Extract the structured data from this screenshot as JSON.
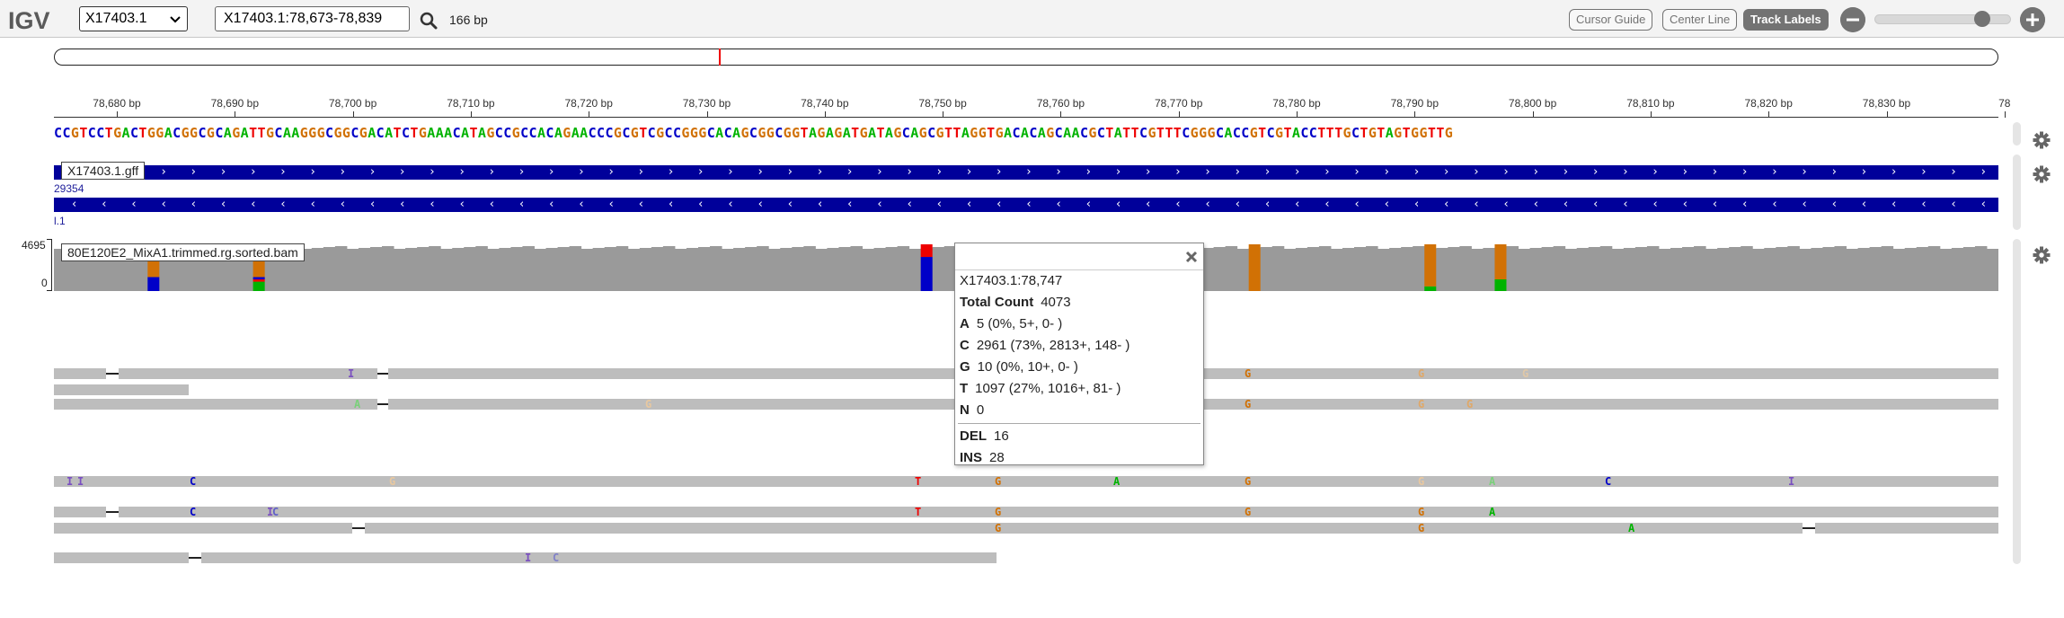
{
  "app": {
    "logo": "IGV"
  },
  "navbar": {
    "genome": "X17403.1",
    "locus": "X17403.1:78,673-78,839",
    "window_size": "166 bp",
    "buttons": {
      "cursor_guide": "Cursor Guide",
      "center_line": "Center Line",
      "track_labels": "Track Labels"
    },
    "zoom_level": 0.83,
    "icons": {
      "search": "search-icon",
      "zoom_out": "minus-circle-icon",
      "zoom_in": "plus-circle-icon"
    }
  },
  "ruler": {
    "ticks": [
      "78,680 bp",
      "78,690 bp",
      "78,700 bp",
      "78,710 bp",
      "78,720 bp",
      "78,730 bp",
      "78,740 bp",
      "78,750 bp",
      "78,760 bp",
      "78,770 bp",
      "78,780 bp",
      "78,790 bp",
      "78,800 bp",
      "78,810 bp",
      "78,820 bp",
      "78,830 bp",
      "78"
    ]
  },
  "sequence": "CCGTCCTGACTGGACGGCGCAGATTGCAAGGGCGGCGACATCTGAAACATAGCCGCCACAGAACCCGCGTCGCCGGGCACAGCGGCGGTAGAGATGATAGCAGCGTTAGGTGACACAGCAACGCTATTCGTTTCGGGCACCGTCGTACCTTTGCTGTAGTGGTTG",
  "colors": {
    "A": "#00b300",
    "C": "#0000c8",
    "G": "#d17105",
    "T": "#ee0000",
    "gene": "#00009a",
    "read": "#bdbdbd",
    "coverage": "#9a9a9a"
  },
  "tracks": {
    "gff": {
      "label": "X17403.1.gff",
      "feature_name_1": "29354",
      "feature_name_2": "l.1"
    },
    "bam": {
      "label": "80E120E2_MixA1.trimmed.rg.sorted.bam",
      "max": "4695",
      "min": "0"
    }
  },
  "popup": {
    "title": "X17403.1:78,747",
    "total_label": "Total Count",
    "total_value": "4073",
    "rows": [
      {
        "key": "A",
        "value": "5 (0%, 5+, 0- )"
      },
      {
        "key": "C",
        "value": "2961 (73%, 2813+, 148- )"
      },
      {
        "key": "G",
        "value": "10 (0%, 10+, 0- )"
      },
      {
        "key": "T",
        "value": "1097 (27%, 1016+, 81- )"
      },
      {
        "key": "N",
        "value": "0"
      }
    ],
    "del_label": "DEL",
    "del_value": "16",
    "ins_label": "INS",
    "ins_value": "28"
  }
}
